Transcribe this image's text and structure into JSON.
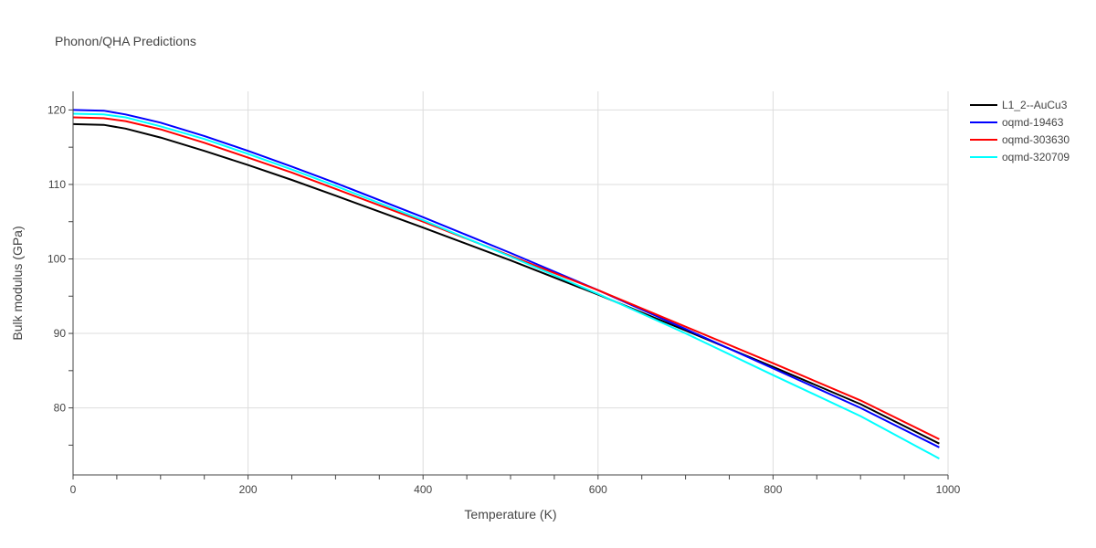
{
  "chart_data": {
    "type": "line",
    "title": "Phonon/QHA Predictions",
    "xlabel": "Temperature (K)",
    "ylabel": "Bulk modulus (GPa)",
    "xlim": [
      0,
      1000
    ],
    "ylim": [
      71,
      122.5
    ],
    "xticks": [
      0,
      200,
      400,
      600,
      800,
      1000
    ],
    "yticks": [
      80,
      90,
      100,
      110,
      120
    ],
    "grid": true,
    "legend_position": "top-right",
    "series": [
      {
        "name": "L1_2--AuCu3",
        "color": "#000000",
        "x": [
          0,
          35,
          60,
          100,
          150,
          200,
          250,
          300,
          400,
          500,
          600,
          700,
          800,
          900,
          990
        ],
        "y": [
          118.1,
          118.0,
          117.5,
          116.3,
          114.5,
          112.6,
          110.6,
          108.5,
          104.2,
          99.8,
          95.2,
          90.4,
          85.5,
          80.5,
          75.2
        ]
      },
      {
        "name": "oqmd-19463",
        "color": "#0000ff",
        "x": [
          0,
          35,
          60,
          100,
          150,
          200,
          250,
          300,
          400,
          500,
          600,
          700,
          800,
          900,
          990
        ],
        "y": [
          120.0,
          119.9,
          119.4,
          118.3,
          116.5,
          114.5,
          112.4,
          110.2,
          105.6,
          100.8,
          95.8,
          90.6,
          85.3,
          80.0,
          74.7
        ]
      },
      {
        "name": "oqmd-303630",
        "color": "#ff0000",
        "x": [
          0,
          35,
          60,
          100,
          150,
          200,
          250,
          300,
          400,
          500,
          600,
          700,
          800,
          900,
          990
        ],
        "y": [
          119.0,
          118.9,
          118.5,
          117.4,
          115.6,
          113.6,
          111.6,
          109.4,
          105.0,
          100.4,
          95.8,
          90.9,
          86.0,
          81.0,
          75.8
        ]
      },
      {
        "name": "oqmd-320709",
        "color": "#00ffff",
        "x": [
          0,
          35,
          60,
          100,
          150,
          200,
          250,
          300,
          400,
          500,
          600,
          700,
          800,
          900,
          990
        ],
        "y": [
          119.5,
          119.4,
          119.0,
          117.8,
          116.1,
          114.1,
          112.0,
          109.8,
          105.2,
          100.3,
          95.3,
          90.0,
          84.4,
          78.9,
          73.2
        ]
      }
    ]
  }
}
